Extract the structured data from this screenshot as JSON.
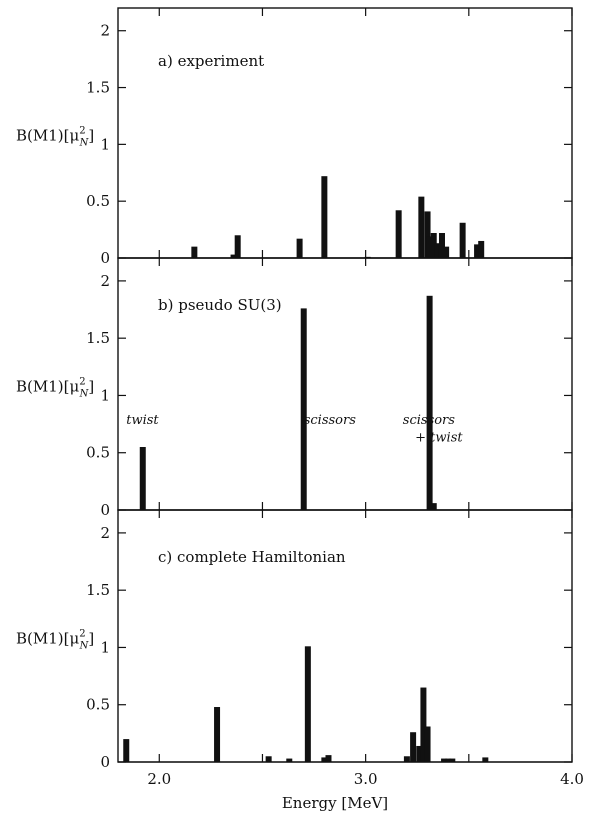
{
  "xlabel": "Energy [MeV]",
  "xticks": [
    "2.0",
    "3.0",
    "4.0"
  ],
  "chart_data": [
    {
      "type": "bar",
      "title": "a) experiment",
      "ylabel_main": "B(M1)",
      "ylabel_unit": "[μ",
      "ylabel_sup": "2",
      "ylabel_sub": "N",
      "ylabel_close": "]",
      "yticks": [
        "0",
        "0.5",
        "1",
        "1.5",
        "2"
      ],
      "ylim": [
        0,
        2.2
      ],
      "xlim": [
        1.8,
        4.0
      ],
      "annotations": [],
      "x": [
        2.17,
        2.36,
        2.38,
        2.68,
        2.8,
        3.01,
        3.16,
        3.27,
        3.3,
        3.31,
        3.33,
        3.35,
        3.37,
        3.39,
        3.47,
        3.54,
        3.56
      ],
      "values": [
        0.1,
        0.03,
        0.2,
        0.17,
        0.72,
        0.01,
        0.42,
        0.54,
        0.41,
        0.19,
        0.22,
        0.13,
        0.22,
        0.1,
        0.31,
        0.12,
        0.15
      ]
    },
    {
      "type": "bar",
      "title": "b) pseudo SU(3)",
      "ylabel_main": "B(M1)",
      "ylabel_unit": "[μ",
      "ylabel_sup": "2",
      "ylabel_sub": "N",
      "ylabel_close": "]",
      "yticks": [
        "0",
        "0.5",
        "1",
        "1.5",
        "2"
      ],
      "ylim": [
        0,
        2.2
      ],
      "xlim": [
        1.8,
        4.0
      ],
      "annotations": [
        {
          "text": "twist",
          "x": 1.84,
          "y": 0.75
        },
        {
          "text": "scissors",
          "x": 2.7,
          "y": 0.75
        },
        {
          "text": "scissors",
          "x": 3.18,
          "y": 0.75
        },
        {
          "text": "+ twist",
          "x": 3.24,
          "y": 0.6
        }
      ],
      "x": [
        1.92,
        2.7,
        3.31,
        3.33
      ],
      "values": [
        0.55,
        1.76,
        1.87,
        0.06
      ]
    },
    {
      "type": "bar",
      "title": "c) complete Hamiltonian",
      "ylabel_main": "B(M1)",
      "ylabel_unit": "[μ",
      "ylabel_sup": "2",
      "ylabel_sub": "N",
      "ylabel_close": "]",
      "yticks": [
        "0",
        "0.5",
        "1",
        "1.5",
        "2"
      ],
      "ylim": [
        0,
        2.2
      ],
      "xlim": [
        1.8,
        4.0
      ],
      "annotations": [],
      "x": [
        1.84,
        2.28,
        2.53,
        2.63,
        2.72,
        2.8,
        2.82,
        3.2,
        3.23,
        3.26,
        3.28,
        3.3,
        3.38,
        3.4,
        3.42,
        3.58
      ],
      "values": [
        0.2,
        0.48,
        0.05,
        0.03,
        1.01,
        0.04,
        0.06,
        0.05,
        0.26,
        0.14,
        0.65,
        0.31,
        0.03,
        0.03,
        0.03,
        0.04
      ]
    }
  ]
}
